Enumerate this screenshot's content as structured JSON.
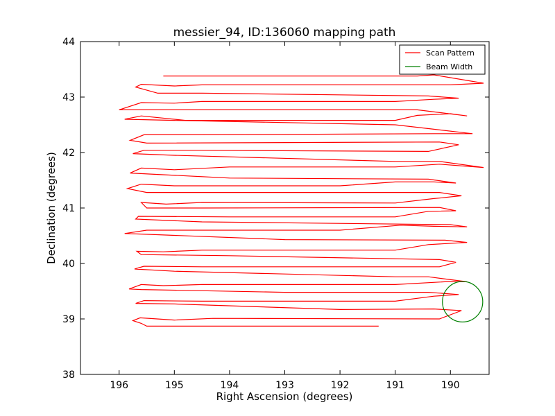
{
  "chart_data": {
    "type": "line",
    "title": "messier_94, ID:136060 mapping path",
    "xlabel": "Right Ascension (degrees)",
    "ylabel": "Declination (degrees)",
    "xlim": [
      196.7,
      189.3
    ],
    "ylim": [
      38,
      44
    ],
    "x_ticks": [
      196,
      195,
      194,
      193,
      192,
      191,
      190
    ],
    "y_ticks": [
      38,
      39,
      40,
      41,
      42,
      43,
      44
    ],
    "grid": false,
    "legend": {
      "placement": "top-right",
      "entries": [
        "Scan Pattern",
        "Beam Width"
      ]
    },
    "series": [
      {
        "name": "Scan Pattern",
        "color": "#ff0000",
        "points": [
          [
            191.3,
            38.87
          ],
          [
            195.5,
            38.87
          ],
          [
            195.6,
            38.92
          ],
          [
            195.75,
            38.97
          ],
          [
            195.62,
            39.02
          ],
          [
            195.0,
            38.98
          ],
          [
            194.3,
            39.01
          ],
          [
            190.2,
            39.0
          ],
          [
            189.8,
            39.15
          ],
          [
            190.3,
            39.18
          ],
          [
            192.0,
            39.17
          ],
          [
            195.0,
            39.27
          ],
          [
            195.7,
            39.28
          ],
          [
            195.55,
            39.33
          ],
          [
            194.5,
            39.32
          ],
          [
            191.0,
            39.32
          ],
          [
            190.3,
            39.41
          ],
          [
            189.85,
            39.44
          ],
          [
            190.4,
            39.48
          ],
          [
            193.0,
            39.48
          ],
          [
            195.6,
            39.53
          ],
          [
            195.82,
            39.54
          ],
          [
            195.6,
            39.62
          ],
          [
            195.2,
            39.6
          ],
          [
            194.5,
            39.62
          ],
          [
            191.0,
            39.62
          ],
          [
            190.1,
            39.67
          ],
          [
            189.7,
            39.67
          ],
          [
            190.4,
            39.76
          ],
          [
            191.0,
            39.76
          ],
          [
            195.0,
            39.86
          ],
          [
            195.72,
            39.9
          ],
          [
            195.55,
            39.95
          ],
          [
            194.5,
            39.94
          ],
          [
            190.2,
            39.94
          ],
          [
            189.9,
            40.02
          ],
          [
            190.2,
            40.07
          ],
          [
            194.0,
            40.14
          ],
          [
            195.6,
            40.16
          ],
          [
            195.68,
            40.22
          ],
          [
            195.2,
            40.21
          ],
          [
            194.5,
            40.24
          ],
          [
            191.0,
            40.24
          ],
          [
            190.4,
            40.34
          ],
          [
            189.7,
            40.38
          ],
          [
            190.1,
            40.42
          ],
          [
            193.0,
            40.43
          ],
          [
            195.6,
            40.53
          ],
          [
            195.9,
            40.54
          ],
          [
            195.5,
            40.6
          ],
          [
            192.0,
            40.6
          ],
          [
            190.9,
            40.69
          ],
          [
            190.3,
            40.67
          ],
          [
            189.7,
            40.66
          ],
          [
            190.0,
            40.7
          ],
          [
            194.5,
            40.75
          ],
          [
            195.7,
            40.8
          ],
          [
            195.65,
            40.85
          ],
          [
            194.0,
            40.84
          ],
          [
            191.0,
            40.84
          ],
          [
            190.4,
            40.94
          ],
          [
            189.9,
            40.95
          ],
          [
            190.2,
            41.01
          ],
          [
            194.5,
            41.0
          ],
          [
            195.5,
            41.0
          ],
          [
            195.6,
            41.1
          ],
          [
            195.15,
            41.07
          ],
          [
            194.5,
            41.1
          ],
          [
            191.0,
            41.09
          ],
          [
            190.3,
            41.17
          ],
          [
            189.8,
            41.22
          ],
          [
            190.2,
            41.28
          ],
          [
            195.5,
            41.28
          ],
          [
            195.85,
            41.35
          ],
          [
            195.6,
            41.43
          ],
          [
            195.0,
            41.4
          ],
          [
            192.0,
            41.4
          ],
          [
            191.0,
            41.47
          ],
          [
            190.3,
            41.47
          ],
          [
            189.9,
            41.45
          ],
          [
            190.4,
            41.52
          ],
          [
            194.0,
            41.54
          ],
          [
            195.8,
            41.63
          ],
          [
            195.6,
            41.72
          ],
          [
            195.0,
            41.69
          ],
          [
            194.0,
            41.74
          ],
          [
            191.0,
            41.74
          ],
          [
            190.2,
            41.79
          ],
          [
            189.4,
            41.73
          ],
          [
            190.2,
            41.84
          ],
          [
            191.0,
            41.84
          ],
          [
            195.0,
            41.95
          ],
          [
            195.75,
            41.98
          ],
          [
            195.55,
            42.04
          ],
          [
            194.5,
            42.04
          ],
          [
            190.4,
            42.02
          ],
          [
            189.85,
            42.14
          ],
          [
            190.2,
            42.19
          ],
          [
            195.5,
            42.17
          ],
          [
            195.8,
            42.22
          ],
          [
            195.55,
            42.32
          ],
          [
            194.5,
            42.32
          ],
          [
            190.3,
            42.34
          ],
          [
            189.6,
            42.34
          ],
          [
            190.3,
            42.42
          ],
          [
            191.0,
            42.5
          ],
          [
            195.0,
            42.58
          ],
          [
            195.9,
            42.6
          ],
          [
            195.6,
            42.66
          ],
          [
            194.8,
            42.58
          ],
          [
            191.0,
            42.58
          ],
          [
            190.6,
            42.67
          ],
          [
            190.0,
            42.7
          ],
          [
            189.7,
            42.66
          ],
          [
            190.6,
            42.77
          ],
          [
            195.0,
            42.77
          ],
          [
            196.0,
            42.77
          ],
          [
            195.6,
            42.9
          ],
          [
            195.0,
            42.89
          ],
          [
            194.5,
            42.92
          ],
          [
            191.0,
            42.92
          ],
          [
            190.3,
            42.96
          ],
          [
            189.85,
            42.98
          ],
          [
            190.4,
            43.02
          ],
          [
            194.5,
            43.07
          ],
          [
            195.3,
            43.07
          ],
          [
            195.7,
            43.18
          ],
          [
            195.6,
            43.23
          ],
          [
            195.0,
            43.2
          ],
          [
            194.5,
            43.22
          ],
          [
            190.0,
            43.22
          ],
          [
            189.4,
            43.25
          ],
          [
            190.3,
            43.4
          ],
          [
            190.6,
            43.38
          ],
          [
            194.5,
            43.38
          ],
          [
            195.2,
            43.38
          ]
        ]
      },
      {
        "name": "Beam Width",
        "color": "#008000",
        "circle": {
          "center": [
            189.78,
            39.31
          ],
          "radius": 0.365
        }
      }
    ]
  }
}
